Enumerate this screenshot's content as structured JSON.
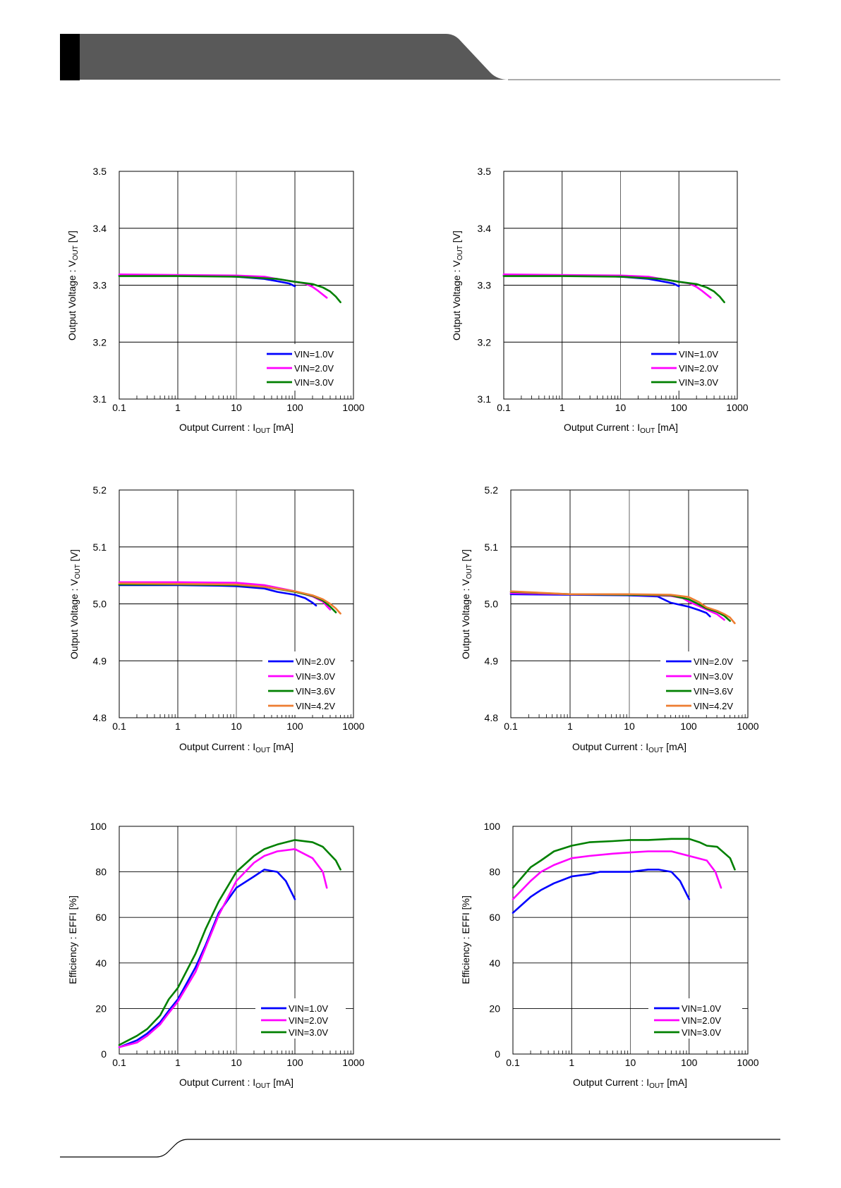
{
  "chart_data": [
    {
      "type": "line",
      "xscale": "log",
      "xlim": [
        0.1,
        1000
      ],
      "ylim": [
        3.1,
        3.5
      ],
      "grid": true,
      "legend_position": "bottom-right",
      "xlabel": "Output Current : I",
      "xlabel_sub": "OUT",
      "xlabel_unit": "[mA]",
      "ylabel": "Output Voltage : V",
      "ylabel_sub": "OUT",
      "ylabel_unit": "[V]",
      "xticks": [
        "0.1",
        "1",
        "10",
        "100",
        "1000"
      ],
      "yticks": [
        "3.1",
        "3.2",
        "3.3",
        "3.4",
        "3.5"
      ],
      "series": [
        {
          "name": "VIN=1.0V",
          "color": "#0000ff",
          "x": [
            0.1,
            0.5,
            1,
            5,
            10,
            30,
            50,
            80,
            100
          ],
          "y": [
            3.317,
            3.317,
            3.317,
            3.316,
            3.315,
            3.311,
            3.307,
            3.303,
            3.298
          ]
        },
        {
          "name": "VIN=2.0V",
          "color": "#ff00ff",
          "x": [
            0.1,
            1,
            10,
            30,
            50,
            100,
            150,
            200,
            250,
            350
          ],
          "y": [
            3.319,
            3.318,
            3.317,
            3.315,
            3.311,
            3.306,
            3.303,
            3.297,
            3.29,
            3.278
          ]
        },
        {
          "name": "VIN=3.0V",
          "color": "#008000",
          "x": [
            0.1,
            1,
            10,
            50,
            100,
            200,
            300,
            400,
            500,
            600
          ],
          "y": [
            3.316,
            3.316,
            3.315,
            3.311,
            3.306,
            3.302,
            3.296,
            3.289,
            3.28,
            3.27
          ]
        }
      ]
    },
    {
      "type": "line",
      "xscale": "log",
      "xlim": [
        0.1,
        1000
      ],
      "ylim": [
        3.1,
        3.5
      ],
      "grid": true,
      "legend_position": "bottom-right",
      "xlabel": "Output Current : I",
      "xlabel_sub": "OUT",
      "xlabel_unit": "[mA]",
      "ylabel": "Output Voltage : V",
      "ylabel_sub": "OUT",
      "ylabel_unit": "[V]",
      "xticks": [
        "0.1",
        "1",
        "10",
        "100",
        "1000"
      ],
      "yticks": [
        "3.1",
        "3.2",
        "3.3",
        "3.4",
        "3.5"
      ],
      "series": [
        {
          "name": "VIN=1.0V",
          "color": "#0000ff",
          "x": [
            0.1,
            0.5,
            1,
            5,
            10,
            30,
            50,
            80,
            100
          ],
          "y": [
            3.317,
            3.317,
            3.317,
            3.316,
            3.315,
            3.311,
            3.307,
            3.303,
            3.298
          ]
        },
        {
          "name": "VIN=2.0V",
          "color": "#ff00ff",
          "x": [
            0.1,
            1,
            10,
            30,
            50,
            100,
            150,
            200,
            250,
            350
          ],
          "y": [
            3.319,
            3.318,
            3.317,
            3.315,
            3.311,
            3.306,
            3.303,
            3.297,
            3.29,
            3.278
          ]
        },
        {
          "name": "VIN=3.0V",
          "color": "#008000",
          "x": [
            0.1,
            1,
            10,
            50,
            100,
            200,
            300,
            400,
            500,
            600
          ],
          "y": [
            3.316,
            3.316,
            3.315,
            3.311,
            3.306,
            3.302,
            3.296,
            3.289,
            3.28,
            3.27
          ]
        }
      ]
    },
    {
      "type": "line",
      "xscale": "log",
      "xlim": [
        0.1,
        1000
      ],
      "ylim": [
        4.8,
        5.2
      ],
      "grid": true,
      "legend_position": "bottom-right",
      "xlabel": "Output Current : I",
      "xlabel_sub": "OUT",
      "xlabel_unit": "[mA]",
      "ylabel": "Output Voltage : V",
      "ylabel_sub": "OUT",
      "ylabel_unit": "[V]",
      "xticks": [
        "0.1",
        "1",
        "10",
        "100",
        "1000"
      ],
      "yticks": [
        "4.8",
        "4.9",
        "5.0",
        "5.1",
        "5.2"
      ],
      "series": [
        {
          "name": "VIN=2.0V",
          "color": "#0000ff",
          "x": [
            0.1,
            1,
            5,
            10,
            30,
            50,
            100,
            150,
            200,
            230
          ],
          "y": [
            5.033,
            5.033,
            5.032,
            5.031,
            5.027,
            5.021,
            5.016,
            5.01,
            5.002,
            4.997
          ]
        },
        {
          "name": "VIN=3.0V",
          "color": "#ff00ff",
          "x": [
            0.1,
            1,
            10,
            30,
            100,
            200,
            300,
            350,
            400
          ],
          "y": [
            5.038,
            5.038,
            5.037,
            5.033,
            5.022,
            5.013,
            5.004,
            4.996,
            4.99
          ]
        },
        {
          "name": "VIN=3.6V",
          "color": "#008000",
          "x": [
            0.1,
            1,
            10,
            30,
            100,
            200,
            300,
            400,
            500
          ],
          "y": [
            5.034,
            5.034,
            5.033,
            5.03,
            5.021,
            5.014,
            5.006,
            4.995,
            4.985
          ]
        },
        {
          "name": "VIN=4.2V",
          "color": "#ed7d31",
          "x": [
            0.1,
            1,
            10,
            30,
            100,
            200,
            300,
            400,
            500,
            600
          ],
          "y": [
            5.036,
            5.035,
            5.034,
            5.03,
            5.022,
            5.015,
            5.008,
            5.0,
            4.992,
            4.983
          ]
        }
      ]
    },
    {
      "type": "line",
      "xscale": "log",
      "xlim": [
        0.1,
        1000
      ],
      "ylim": [
        4.8,
        5.2
      ],
      "grid": true,
      "legend_position": "bottom-right",
      "xlabel": "Output Current : I",
      "xlabel_sub": "OUT",
      "xlabel_unit": "[mA]",
      "ylabel": "Output Voltage : V",
      "ylabel_sub": "OUT",
      "ylabel_unit": "[V]",
      "xticks": [
        "0.1",
        "1",
        "10",
        "100",
        "1000"
      ],
      "yticks": [
        "4.8",
        "4.9",
        "5.0",
        "5.1",
        "5.2"
      ],
      "series": [
        {
          "name": "VIN=2.0V",
          "color": "#0000ff",
          "x": [
            0.1,
            1,
            10,
            30,
            50,
            100,
            150,
            200,
            230
          ],
          "y": [
            5.017,
            5.016,
            5.015,
            5.013,
            5.002,
            4.995,
            4.989,
            4.984,
            4.978
          ]
        },
        {
          "name": "VIN=3.0V",
          "color": "#ff00ff",
          "x": [
            0.1,
            1,
            10,
            50,
            80,
            100,
            150,
            200,
            300,
            400
          ],
          "y": [
            5.019,
            5.017,
            5.016,
            5.014,
            5.01,
            5.004,
            4.996,
            4.99,
            4.982,
            4.972
          ]
        },
        {
          "name": "VIN=3.6V",
          "color": "#008000",
          "x": [
            0.1,
            1,
            10,
            50,
            100,
            150,
            200,
            300,
            400,
            500
          ],
          "y": [
            5.021,
            5.017,
            5.016,
            5.015,
            5.008,
            4.999,
            4.992,
            4.986,
            4.979,
            4.97
          ]
        },
        {
          "name": "VIN=4.2V",
          "color": "#ed7d31",
          "x": [
            0.1,
            1,
            10,
            50,
            100,
            150,
            200,
            300,
            400,
            500,
            600
          ],
          "y": [
            5.022,
            5.017,
            5.017,
            5.016,
            5.012,
            5.003,
            4.994,
            4.988,
            4.982,
            4.976,
            4.966
          ]
        }
      ]
    },
    {
      "type": "line",
      "xscale": "log",
      "xlim": [
        0.1,
        1000
      ],
      "ylim": [
        0,
        100
      ],
      "grid": true,
      "legend_position": "bottom-right",
      "xlabel": "Output Current : I",
      "xlabel_sub": "OUT",
      "xlabel_unit": "[mA]",
      "ylabel": "Efficiency : EFFI [%]",
      "ylabel_sub": "",
      "ylabel_unit": "",
      "xticks": [
        "0.1",
        "1",
        "10",
        "100",
        "1000"
      ],
      "yticks": [
        "0",
        "20",
        "40",
        "60",
        "80",
        "100"
      ],
      "series": [
        {
          "name": "VIN=1.0V",
          "color": "#0000ff",
          "x": [
            0.1,
            0.2,
            0.3,
            0.5,
            0.7,
            1,
            2,
            3,
            5,
            10,
            20,
            30,
            50,
            70,
            100
          ],
          "y": [
            3,
            6,
            9,
            14,
            19,
            24,
            38,
            48,
            62,
            73,
            78,
            81,
            80,
            76,
            68
          ]
        },
        {
          "name": "VIN=2.0V",
          "color": "#ff00ff",
          "x": [
            0.1,
            0.2,
            0.3,
            0.5,
            0.7,
            1,
            2,
            3,
            5,
            10,
            20,
            30,
            50,
            100,
            200,
            300,
            350
          ],
          "y": [
            3,
            5,
            8,
            13,
            18,
            23,
            36,
            47,
            61,
            76,
            84,
            87,
            89,
            90,
            86,
            80,
            73
          ]
        },
        {
          "name": "VIN=3.0V",
          "color": "#008000",
          "x": [
            0.1,
            0.2,
            0.3,
            0.5,
            0.7,
            1,
            2,
            3,
            5,
            10,
            20,
            30,
            50,
            100,
            200,
            300,
            500,
            600
          ],
          "y": [
            4,
            8,
            11,
            17,
            24,
            29,
            44,
            55,
            67,
            80,
            87,
            90,
            92,
            94,
            93,
            91,
            85,
            81
          ]
        }
      ]
    },
    {
      "type": "line",
      "xscale": "log",
      "xlim": [
        0.1,
        1000
      ],
      "ylim": [
        0,
        100
      ],
      "grid": true,
      "legend_position": "bottom-right",
      "xlabel": "Output Current : I",
      "xlabel_sub": "OUT",
      "xlabel_unit": "[mA]",
      "ylabel": "Efficiency : EFFI [%]",
      "ylabel_sub": "",
      "ylabel_unit": "",
      "xticks": [
        "0.1",
        "1",
        "10",
        "100",
        "1000"
      ],
      "yticks": [
        "0",
        "20",
        "40",
        "60",
        "80",
        "100"
      ],
      "series": [
        {
          "name": "VIN=1.0V",
          "color": "#0000ff",
          "x": [
            0.1,
            0.2,
            0.3,
            0.5,
            1,
            2,
            3,
            5,
            10,
            20,
            30,
            50,
            70,
            100
          ],
          "y": [
            62,
            69,
            72,
            75,
            78,
            79,
            80,
            80,
            80,
            81,
            81,
            80,
            76,
            68
          ]
        },
        {
          "name": "VIN=2.0V",
          "color": "#ff00ff",
          "x": [
            0.1,
            0.2,
            0.3,
            0.5,
            1,
            2,
            5,
            10,
            20,
            50,
            100,
            200,
            280,
            350
          ],
          "y": [
            68,
            76,
            80,
            83,
            86,
            87,
            88,
            88.5,
            89,
            89,
            87,
            85,
            80,
            73
          ]
        },
        {
          "name": "VIN=3.0V",
          "color": "#008000",
          "x": [
            0.1,
            0.2,
            0.3,
            0.5,
            1,
            2,
            5,
            10,
            20,
            50,
            100,
            150,
            200,
            300,
            500,
            600
          ],
          "y": [
            73,
            82,
            85,
            89,
            91.5,
            93,
            93.5,
            94,
            94,
            94.5,
            94.5,
            93,
            91.5,
            91,
            86,
            81
          ]
        }
      ]
    }
  ]
}
